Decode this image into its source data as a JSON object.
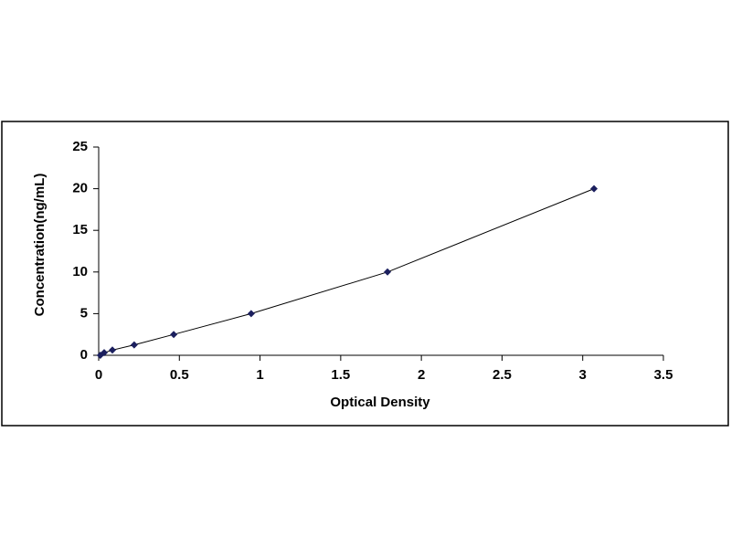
{
  "chart_data": {
    "type": "line",
    "x_label": "Optical Density",
    "y_label": "Concentration(ng/mL)",
    "x": [
      0.01,
      0.034,
      0.085,
      0.22,
      0.465,
      0.945,
      1.79,
      3.07
    ],
    "series": [
      {
        "color": "#1b1f5e",
        "values": [
          0,
          0.312,
          0.625,
          1.25,
          2.5,
          5,
          10,
          20
        ]
      }
    ],
    "xlim": [
      0,
      3.5
    ],
    "xticks": [
      0,
      0.5,
      1,
      1.5,
      2,
      2.5,
      3,
      3.5
    ],
    "ylim": [
      0,
      25
    ],
    "yticks": [
      0,
      5,
      10,
      15,
      20,
      25
    ],
    "grid": false
  }
}
